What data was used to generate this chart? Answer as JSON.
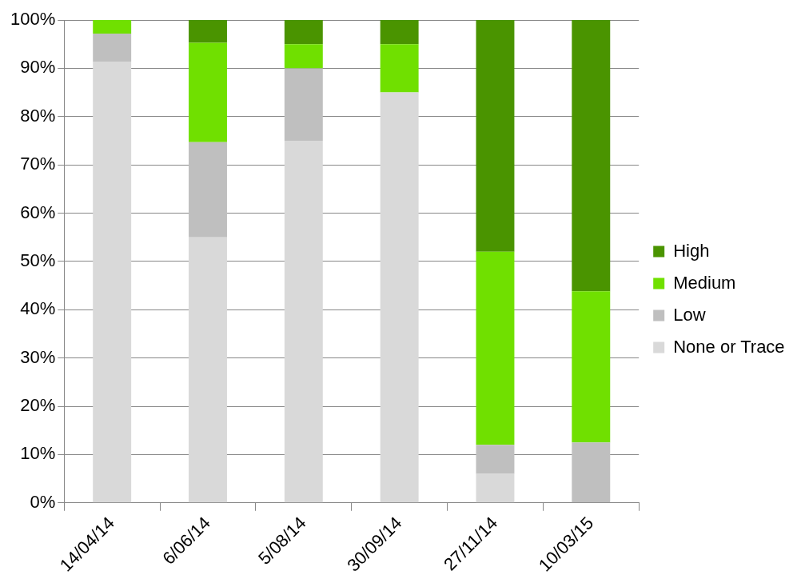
{
  "chart_data": {
    "type": "bar",
    "stacked": true,
    "categories": [
      "14/04/14",
      "6/06/14",
      "5/08/14",
      "30/09/14",
      "27/11/14",
      "10/03/15"
    ],
    "series": [
      {
        "name": "None or Trace",
        "color": "#d9d9d9",
        "values": [
          91.4,
          55,
          75,
          85,
          6,
          0
        ]
      },
      {
        "name": "Low",
        "color": "#bfbfbf",
        "values": [
          5.8,
          19.7,
          15,
          0,
          6,
          12.5
        ]
      },
      {
        "name": "Medium",
        "color": "#70e000",
        "values": [
          2.8,
          20.6,
          5,
          10,
          40,
          31.3
        ]
      },
      {
        "name": "High",
        "color": "#4a9400",
        "values": [
          0,
          4.7,
          5,
          5,
          48,
          56.2
        ]
      }
    ],
    "ylim": [
      0,
      100
    ],
    "yticks": [
      {
        "value": 0,
        "label": "0%"
      },
      {
        "value": 10,
        "label": "10%"
      },
      {
        "value": 20,
        "label": "20%"
      },
      {
        "value": 30,
        "label": "30%"
      },
      {
        "value": 40,
        "label": "40%"
      },
      {
        "value": 50,
        "label": "50%"
      },
      {
        "value": 60,
        "label": "60%"
      },
      {
        "value": 70,
        "label": "70%"
      },
      {
        "value": 80,
        "label": "80%"
      },
      {
        "value": 90,
        "label": "90%"
      },
      {
        "value": 100,
        "label": "100%"
      }
    ],
    "grid": "y",
    "legend": "right"
  }
}
